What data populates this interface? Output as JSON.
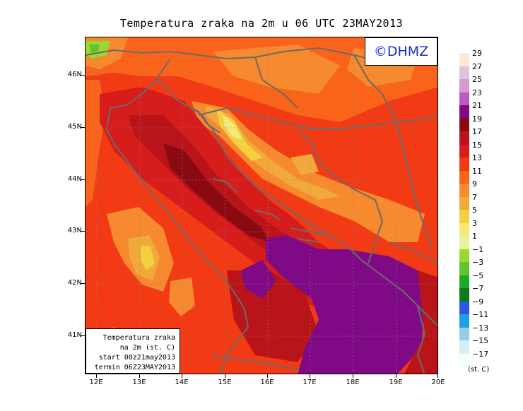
{
  "title": "Temperatura zraka na 2m u 06 UTC 23MAY2013",
  "copyright": "©DHMZ",
  "info_box": {
    "line1": "Temperatura zraka",
    "line2": "na 2m (st. C)",
    "line3": "start 00z21may2013",
    "line4": "termin 06Z23MAY2013"
  },
  "lat_labels": [
    "46N",
    "45N",
    "44N",
    "43N",
    "42N",
    "41N"
  ],
  "lon_labels": [
    "12E",
    "13E",
    "14E",
    "15E",
    "16E",
    "17E",
    "18E",
    "19E",
    "20E"
  ],
  "legend": {
    "levels": [
      "29",
      "27",
      "25",
      "23",
      "21",
      "19",
      "17",
      "15",
      "13",
      "11",
      "9",
      "7",
      "5",
      "3",
      "1",
      "−1",
      "−3",
      "−5",
      "−7",
      "−9",
      "−11",
      "−13",
      "−15",
      "−17"
    ],
    "colors": [
      "#fde9d6",
      "#dcc3e0",
      "#d69ad0",
      "#bb5bc0",
      "#800a86",
      "#8b0a12",
      "#b8141a",
      "#d71c1c",
      "#f23a14",
      "#f9641a",
      "#f7892e",
      "#f1a93c",
      "#f2d040",
      "#f5e97a",
      "#e6f2a0",
      "#98d831",
      "#5fc52a",
      "#1aab2a",
      "#0f7a1c",
      "#2d55e6",
      "#1ba0e2",
      "#97cde6",
      "#d5eff5",
      "#f3ffff"
    ],
    "unit": "(st. C)"
  }
}
